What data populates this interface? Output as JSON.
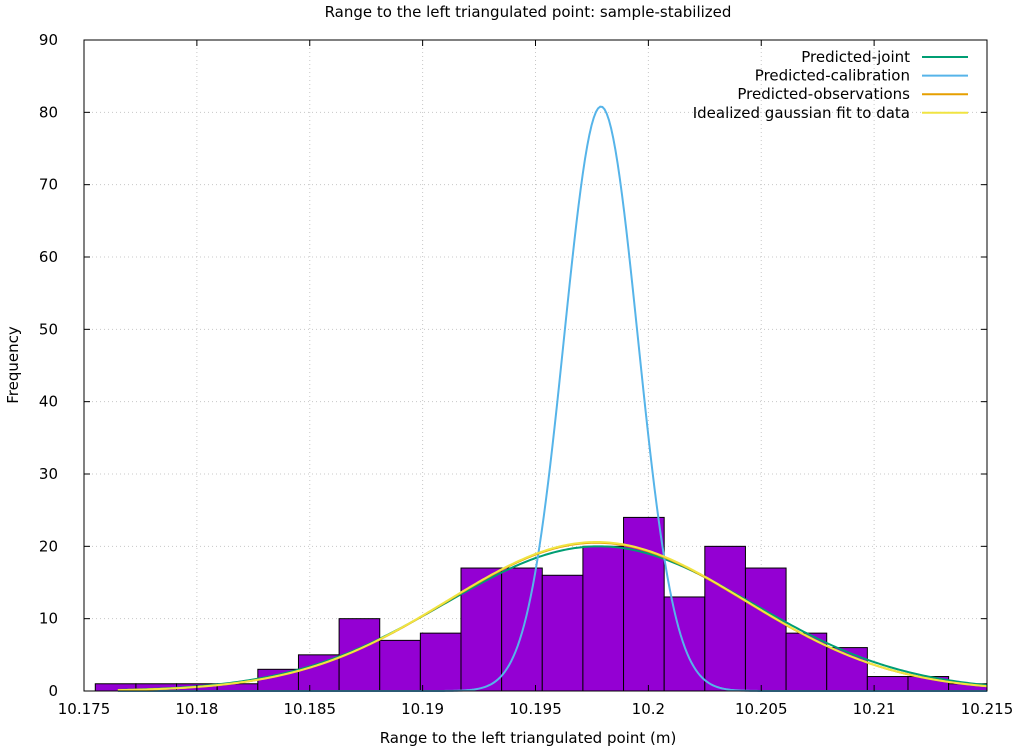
{
  "chart_data": {
    "type": "histogram",
    "title": "Range to the left triangulated point: sample-stabilized",
    "xlabel": "Range to the left triangulated point (m)",
    "ylabel": "Frequency",
    "xlim": [
      10.175,
      10.215
    ],
    "ylim": [
      0,
      90
    ],
    "x_ticks": [
      "10.175",
      "10.18",
      "10.185",
      "10.19",
      "10.195",
      "10.2",
      "10.205",
      "10.21",
      "10.215"
    ],
    "y_ticks": [
      "0",
      "10",
      "20",
      "30",
      "40",
      "50",
      "60",
      "70",
      "80",
      "90"
    ],
    "grid": true,
    "legend_position": "top-right",
    "histogram": {
      "color": "#9400d3",
      "bins": [
        {
          "x0": 10.1755,
          "x1": 10.1773,
          "count": 1
        },
        {
          "x0": 10.1773,
          "x1": 10.1791,
          "count": 1
        },
        {
          "x0": 10.1791,
          "x1": 10.1809,
          "count": 1
        },
        {
          "x0": 10.1809,
          "x1": 10.1827,
          "count": 1
        },
        {
          "x0": 10.1827,
          "x1": 10.1845,
          "count": 3
        },
        {
          "x0": 10.1845,
          "x1": 10.1863,
          "count": 5
        },
        {
          "x0": 10.1863,
          "x1": 10.1881,
          "count": 10
        },
        {
          "x0": 10.1881,
          "x1": 10.1899,
          "count": 7
        },
        {
          "x0": 10.1899,
          "x1": 10.1917,
          "count": 8
        },
        {
          "x0": 10.1917,
          "x1": 10.1935,
          "count": 17
        },
        {
          "x0": 10.1935,
          "x1": 10.1953,
          "count": 17
        },
        {
          "x0": 10.1953,
          "x1": 10.1971,
          "count": 16
        },
        {
          "x0": 10.1971,
          "x1": 10.1989,
          "count": 20
        },
        {
          "x0": 10.1989,
          "x1": 10.2007,
          "count": 24
        },
        {
          "x0": 10.2007,
          "x1": 10.2025,
          "count": 13
        },
        {
          "x0": 10.2025,
          "x1": 10.2043,
          "count": 20
        },
        {
          "x0": 10.2043,
          "x1": 10.2061,
          "count": 17
        },
        {
          "x0": 10.2061,
          "x1": 10.2079,
          "count": 8
        },
        {
          "x0": 10.2079,
          "x1": 10.2097,
          "count": 6
        },
        {
          "x0": 10.2097,
          "x1": 10.2115,
          "count": 2
        },
        {
          "x0": 10.2115,
          "x1": 10.2133,
          "count": 2
        },
        {
          "x0": 10.2133,
          "x1": 10.2151,
          "count": 1
        }
      ]
    },
    "series": [
      {
        "name": "Predicted-joint",
        "type": "gaussian",
        "color": "#009e73",
        "peak": 20.0,
        "mean": 10.1978,
        "sigma": 0.0068,
        "x_range": [
          10.1765,
          10.215
        ]
      },
      {
        "name": "Predicted-calibration",
        "type": "gaussian",
        "color": "#56b4e9",
        "peak": 80.8,
        "mean": 10.1979,
        "sigma": 0.00163,
        "x_range": [
          10.1765,
          10.215
        ]
      },
      {
        "name": "Predicted-observations",
        "type": "gaussian",
        "color": "#e69f00",
        "peak": 20.5,
        "mean": 10.1977,
        "sigma": 0.0066,
        "x_range": [
          10.1765,
          10.215
        ]
      },
      {
        "name": "Idealized gaussian fit to data",
        "type": "gaussian",
        "color": "#f0e442",
        "peak": 20.6,
        "mean": 10.1977,
        "sigma": 0.0066,
        "x_range": [
          10.1765,
          10.215
        ]
      }
    ]
  }
}
